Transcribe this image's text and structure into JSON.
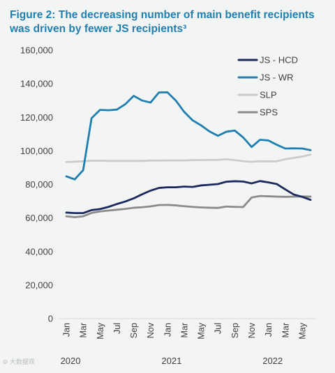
{
  "figure": {
    "title_line1": "Figure 2: The decreasing number of main benefit recipients",
    "title_line2": "was driven by fewer JS recipients³"
  },
  "watermark": "࿃ 大数据观",
  "colors": {
    "background": "#f3f4f4",
    "title": "#1f7fae",
    "axis_text": "#404040",
    "axis_line": "#d9d9d9"
  },
  "chart_data": {
    "type": "line",
    "x": [
      "Jan",
      "Feb",
      "Mar",
      "Apr",
      "May",
      "Jun",
      "Jul",
      "Aug",
      "Sep",
      "Oct",
      "Nov",
      "Dec",
      "Jan",
      "Feb",
      "Mar",
      "Apr",
      "May",
      "Jun",
      "Jul",
      "Aug",
      "Sep",
      "Oct",
      "Nov",
      "Dec",
      "Jan",
      "Feb",
      "Mar",
      "Apr",
      "May",
      "Jun"
    ],
    "x_tick_labels": [
      "Jan",
      "Mar",
      "May",
      "Jul",
      "Sep",
      "Nov",
      "Jan",
      "Mar",
      "May",
      "Jul",
      "Sep",
      "Nov",
      "Jan",
      "Mar",
      "May"
    ],
    "x_tick_positions": [
      0,
      2,
      4,
      6,
      8,
      10,
      12,
      14,
      16,
      18,
      20,
      22,
      24,
      26,
      28
    ],
    "year_labels": [
      {
        "label": "2020",
        "at": 0.5
      },
      {
        "label": "2021",
        "at": 12.5
      },
      {
        "label": "2022",
        "at": 24.5
      }
    ],
    "ylim": [
      0,
      160000
    ],
    "y_ticks": [
      0,
      20000,
      40000,
      60000,
      80000,
      100000,
      120000,
      140000,
      160000
    ],
    "y_tick_labels": [
      "0",
      "20,000",
      "40,000",
      "60,000",
      "80,000",
      "100,000",
      "120,000",
      "140,000",
      "160,000"
    ],
    "grid": false,
    "legend_position": "top-right",
    "series": [
      {
        "name": "JS - HCD",
        "color": "#1b2a5c",
        "values": [
          63200,
          62900,
          62900,
          64700,
          65300,
          66600,
          68300,
          69800,
          71700,
          74100,
          76300,
          77900,
          78300,
          78300,
          78700,
          78500,
          79400,
          79800,
          80200,
          81600,
          81900,
          81700,
          80600,
          82000,
          81200,
          80200,
          77000,
          74000,
          72600,
          70800
        ]
      },
      {
        "name": "JS - WR",
        "color": "#1f7fae",
        "values": [
          84800,
          83000,
          88500,
          119500,
          124400,
          124200,
          124600,
          127800,
          132800,
          130000,
          128800,
          134800,
          134900,
          130000,
          123200,
          118200,
          115200,
          111600,
          109000,
          111400,
          112100,
          108000,
          102300,
          106600,
          106200,
          103600,
          101400,
          101500,
          101400,
          100400
        ]
      },
      {
        "name": "SLP",
        "color": "#cbcbcb",
        "values": [
          93300,
          93500,
          93800,
          94100,
          94100,
          94000,
          94000,
          94000,
          94000,
          94000,
          94200,
          94200,
          94300,
          94300,
          94300,
          94500,
          94500,
          94600,
          94600,
          95000,
          94500,
          93800,
          93500,
          93800,
          93700,
          93800,
          95000,
          95800,
          96600,
          97800
        ]
      },
      {
        "name": "SPS",
        "color": "#8b8b8b",
        "values": [
          61000,
          60500,
          61000,
          63000,
          63900,
          64400,
          64900,
          65400,
          66100,
          66400,
          66900,
          67700,
          67800,
          67500,
          67000,
          66600,
          66300,
          66100,
          66000,
          66800,
          66600,
          66500,
          72200,
          73100,
          72900,
          72700,
          72600,
          72700,
          72800,
          72700
        ]
      }
    ]
  }
}
